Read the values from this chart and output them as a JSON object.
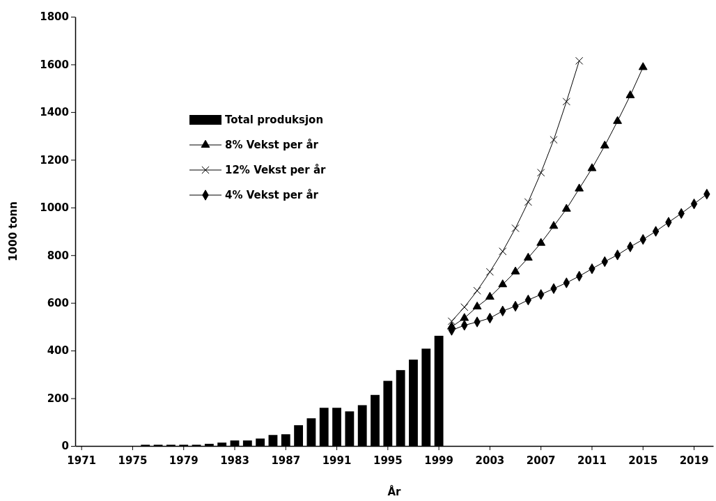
{
  "chart_data": {
    "type": "bar",
    "xlabel": "År",
    "ylabel": "1000 tonn",
    "categories": [
      "1971",
      null,
      null,
      null,
      "1975",
      null,
      null,
      null,
      "1979",
      null,
      null,
      null,
      "1983",
      null,
      null,
      null,
      "1987",
      null,
      null,
      null,
      "1991",
      null,
      null,
      null,
      "1995",
      null,
      null,
      null,
      "1999",
      null,
      null,
      null,
      "2003",
      null,
      null,
      null,
      "2007",
      null,
      null,
      null,
      "2011",
      null,
      null,
      null,
      "2015",
      null,
      null,
      null,
      "2019",
      null
    ],
    "series": [
      {
        "name": "Total produksjon",
        "color": "#000000",
        "values": [
          null,
          null,
          null,
          null,
          null,
          5,
          5,
          5,
          5,
          5,
          9,
          14,
          23,
          23,
          31,
          46,
          49,
          87,
          116,
          160,
          160,
          145,
          171,
          214,
          273,
          318,
          362,
          408,
          462,
          null,
          null,
          null,
          null,
          null,
          null,
          null,
          null,
          null,
          null,
          null,
          null,
          null,
          null,
          null,
          null,
          null,
          null,
          null,
          null,
          null
        ]
      },
      {
        "name": "8% Vekst per år",
        "type": "line",
        "marker": "triangle",
        "color": "#000000",
        "values": [
          null,
          null,
          null,
          null,
          null,
          null,
          null,
          null,
          null,
          null,
          null,
          null,
          null,
          null,
          null,
          null,
          null,
          null,
          null,
          null,
          null,
          null,
          null,
          null,
          null,
          null,
          null,
          null,
          null,
          500,
          536,
          584,
          625,
          677,
          731,
          789,
          851,
          922,
          994,
          1079,
          1164,
          1259,
          1362,
          1470,
          1588,
          null,
          null,
          null,
          null,
          null
        ]
      },
      {
        "name": "12% Vekst per år",
        "type": "line",
        "marker": "cross",
        "color": "#000000",
        "values": [
          null,
          null,
          null,
          null,
          null,
          null,
          null,
          null,
          null,
          null,
          null,
          null,
          null,
          null,
          null,
          null,
          null,
          null,
          null,
          null,
          null,
          null,
          null,
          null,
          null,
          null,
          null,
          null,
          null,
          523,
          582,
          651,
          730,
          816,
          913,
          1023,
          1146,
          1284,
          1444,
          1615,
          null,
          null,
          null,
          null,
          null,
          null,
          null,
          null,
          null,
          null
        ]
      },
      {
        "name": "4% Vekst per år",
        "type": "line",
        "marker": "diamond",
        "color": "#000000",
        "values": [
          null,
          null,
          null,
          null,
          null,
          null,
          null,
          null,
          null,
          null,
          null,
          null,
          null,
          null,
          null,
          null,
          null,
          null,
          null,
          null,
          null,
          null,
          null,
          null,
          null,
          null,
          null,
          null,
          null,
          485,
          506,
          520,
          536,
          566,
          586,
          612,
          635,
          660,
          684,
          712,
          743,
          773,
          801,
          835,
          866,
          900,
          938,
          975,
          1015,
          1056
        ]
      }
    ],
    "ylim": [
      0,
      1800
    ],
    "yticks": [
      0,
      200,
      400,
      600,
      800,
      1000,
      1200,
      1400,
      1600,
      1800
    ],
    "grid": false,
    "legend": "top left"
  }
}
